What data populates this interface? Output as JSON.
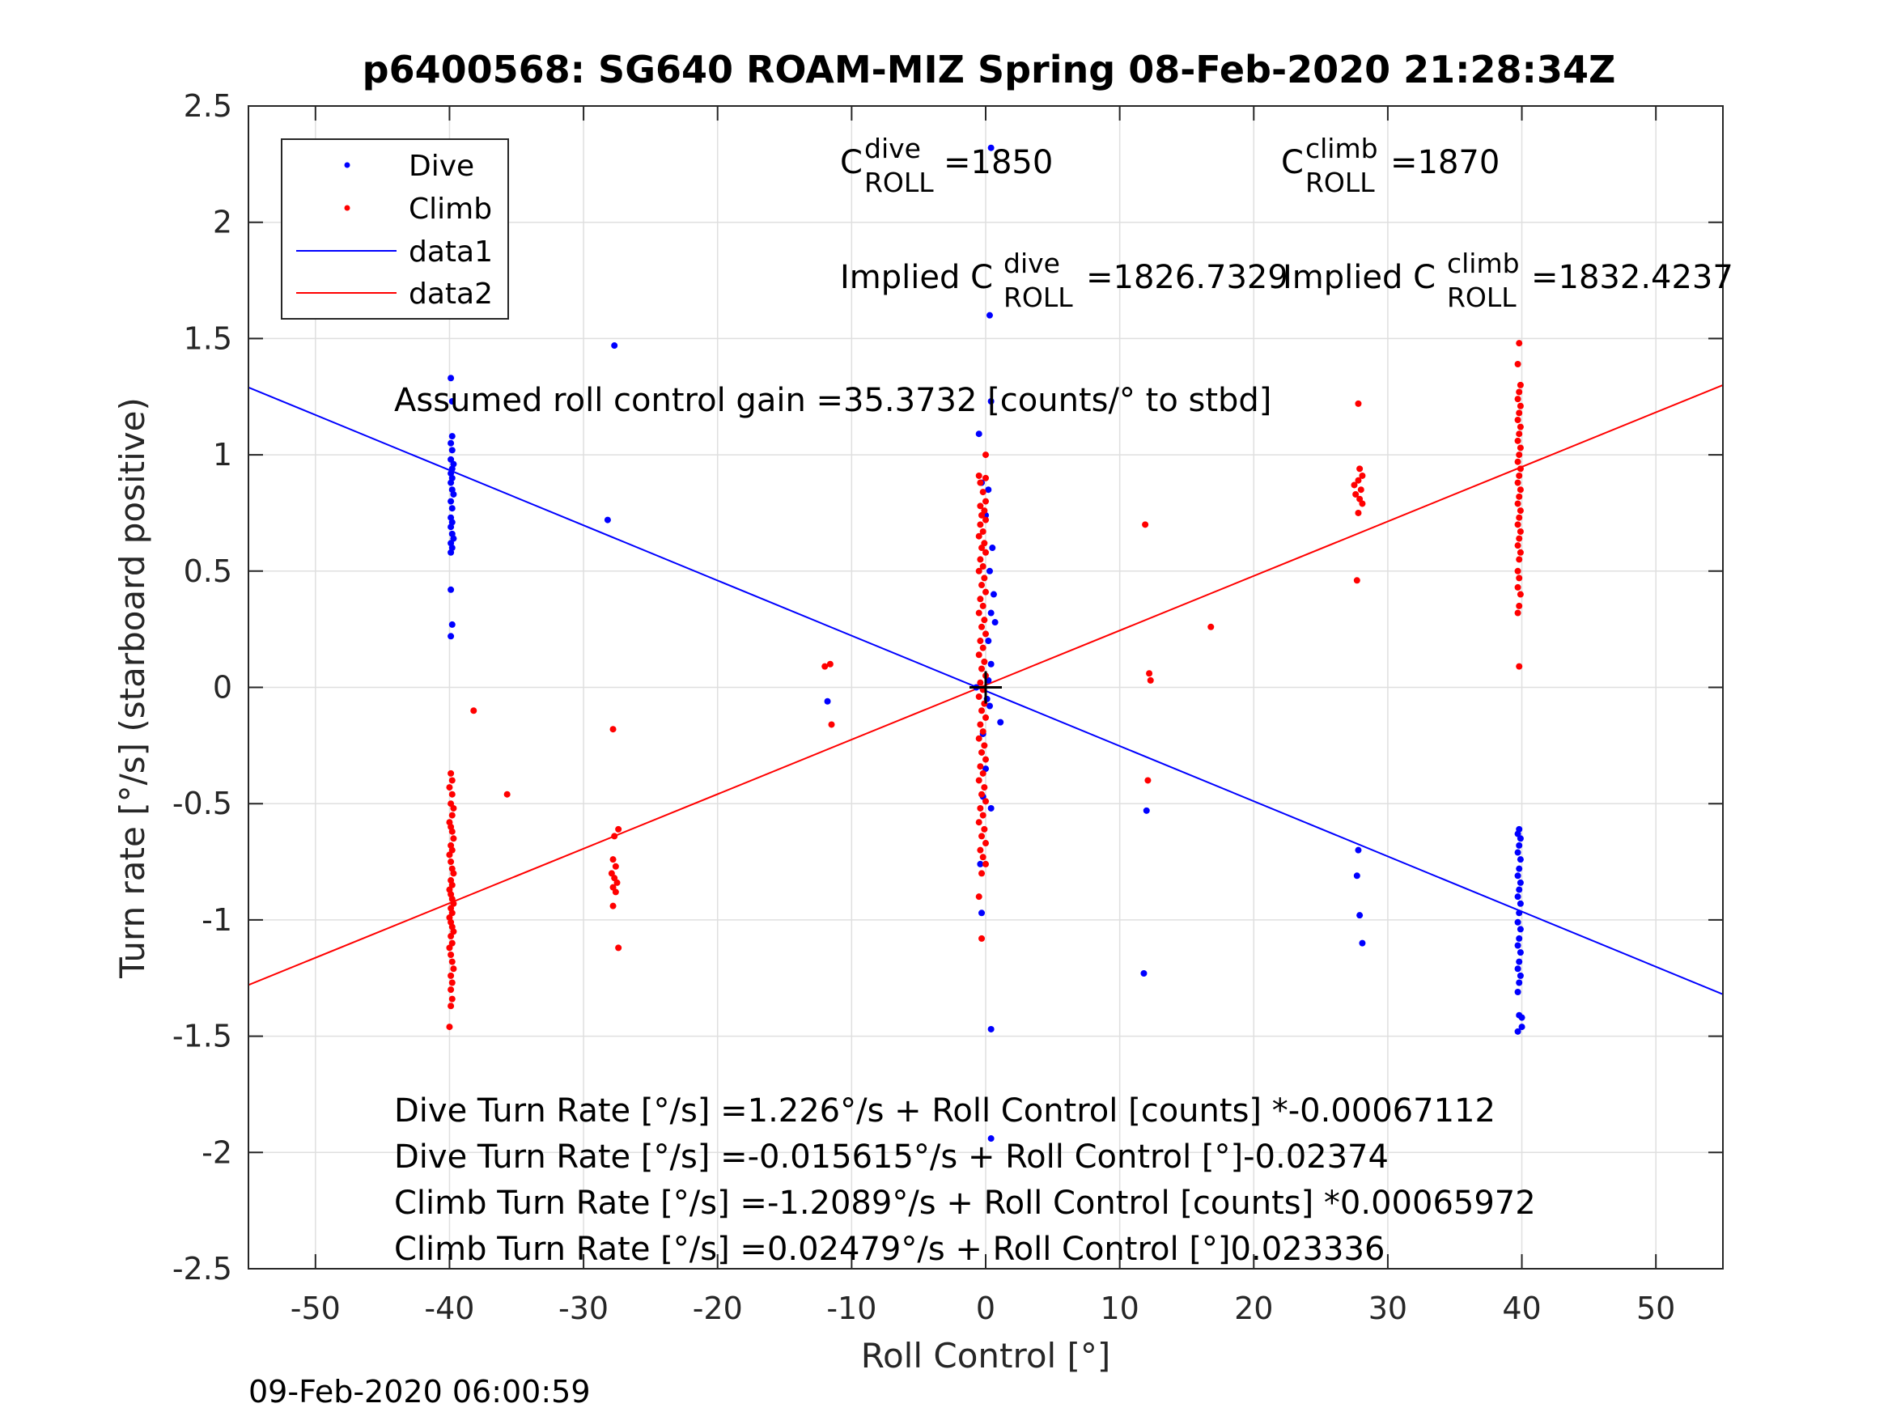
{
  "chart_data": {
    "type": "scatter",
    "title": "p6400568: SG640 ROAM-MIZ Spring 08-Feb-2020 21:28:34Z",
    "xlabel": "Roll Control [°]",
    "ylabel": "Turn rate [°/s] (starboard positive)",
    "xlim": [
      -55,
      55
    ],
    "ylim": [
      -2.5,
      2.5
    ],
    "xticks": [
      -50,
      -40,
      -30,
      -20,
      -10,
      0,
      10,
      20,
      30,
      40,
      50
    ],
    "yticks": [
      -2.5,
      -2,
      -1.5,
      -1,
      -0.5,
      0,
      0.5,
      1,
      1.5,
      2,
      2.5
    ],
    "xtick_labels": [
      "-50",
      "-40",
      "-30",
      "-20",
      "-10",
      "0",
      "10",
      "20",
      "30",
      "40",
      "50"
    ],
    "ytick_labels": [
      "-2.5",
      "-2",
      "-1.5",
      "-1",
      "-0.5",
      "0",
      "0.5",
      "1",
      "1.5",
      "2",
      "2.5"
    ],
    "grid": true,
    "legend_position": "top-left",
    "legend": [
      {
        "name": "Dive",
        "type": "points",
        "color": "#0000ff"
      },
      {
        "name": "Climb",
        "type": "points",
        "color": "#ff0000"
      },
      {
        "name": "data1",
        "type": "line",
        "color": "#0000ff"
      },
      {
        "name": "data2",
        "type": "line",
        "color": "#ff0000"
      }
    ],
    "series": [
      {
        "name": "Dive",
        "color": "#0000ff",
        "points": [
          [
            -39.8,
            1.63
          ],
          [
            -39.9,
            1.33
          ],
          [
            -39.8,
            1.23
          ],
          [
            -39.8,
            1.08
          ],
          [
            -39.9,
            1.05
          ],
          [
            -39.8,
            1.02
          ],
          [
            -39.9,
            0.98
          ],
          [
            -39.7,
            0.96
          ],
          [
            -39.8,
            0.94
          ],
          [
            -39.9,
            0.92
          ],
          [
            -39.8,
            0.9
          ],
          [
            -39.9,
            0.88
          ],
          [
            -39.8,
            0.85
          ],
          [
            -39.7,
            0.83
          ],
          [
            -39.9,
            0.8
          ],
          [
            -39.8,
            0.77
          ],
          [
            -39.9,
            0.73
          ],
          [
            -39.8,
            0.71
          ],
          [
            -39.9,
            0.69
          ],
          [
            -39.8,
            0.66
          ],
          [
            -39.7,
            0.64
          ],
          [
            -39.9,
            0.62
          ],
          [
            -39.8,
            0.6
          ],
          [
            -39.9,
            0.58
          ],
          [
            -39.9,
            0.42
          ],
          [
            -39.8,
            0.27
          ],
          [
            -39.9,
            0.22
          ],
          [
            -27.7,
            1.47
          ],
          [
            -28.2,
            0.72
          ],
          [
            0.4,
            2.32
          ],
          [
            0.3,
            1.6
          ],
          [
            0.4,
            1.23
          ],
          [
            -0.5,
            1.09
          ],
          [
            -0.3,
            0.88
          ],
          [
            0.2,
            0.85
          ],
          [
            0.0,
            0.74
          ],
          [
            0.5,
            0.6
          ],
          [
            0.3,
            0.5
          ],
          [
            0.6,
            0.4
          ],
          [
            0.4,
            0.32
          ],
          [
            0.7,
            0.28
          ],
          [
            0.2,
            0.2
          ],
          [
            0.4,
            0.1
          ],
          [
            0.2,
            0.03
          ],
          [
            -0.7,
            0.0
          ],
          [
            0.1,
            -0.05
          ],
          [
            0.3,
            -0.08
          ],
          [
            -0.2,
            -0.2
          ],
          [
            1.1,
            -0.15
          ],
          [
            0.0,
            -0.35
          ],
          [
            -0.2,
            -0.47
          ],
          [
            0.4,
            -0.52
          ],
          [
            -0.4,
            -0.76
          ],
          [
            -0.3,
            -0.97
          ],
          [
            0.4,
            -1.47
          ],
          [
            0.4,
            -1.94
          ],
          [
            -11.8,
            -0.06
          ],
          [
            12.0,
            -0.53
          ],
          [
            11.8,
            -1.23
          ],
          [
            27.8,
            -0.7
          ],
          [
            27.7,
            -0.81
          ],
          [
            27.9,
            -0.98
          ],
          [
            28.1,
            -1.1
          ],
          [
            39.8,
            -0.61
          ],
          [
            39.7,
            -0.63
          ],
          [
            39.9,
            -0.65
          ],
          [
            39.8,
            -0.68
          ],
          [
            39.7,
            -0.71
          ],
          [
            39.9,
            -0.74
          ],
          [
            39.8,
            -0.78
          ],
          [
            39.7,
            -0.81
          ],
          [
            39.9,
            -0.84
          ],
          [
            39.8,
            -0.87
          ],
          [
            39.7,
            -0.9
          ],
          [
            39.9,
            -0.93
          ],
          [
            39.8,
            -0.97
          ],
          [
            39.7,
            -1.01
          ],
          [
            39.9,
            -1.04
          ],
          [
            39.8,
            -1.08
          ],
          [
            39.7,
            -1.11
          ],
          [
            39.9,
            -1.14
          ],
          [
            39.8,
            -1.18
          ],
          [
            39.7,
            -1.21
          ],
          [
            39.9,
            -1.24
          ],
          [
            39.8,
            -1.27
          ],
          [
            39.7,
            -1.31
          ],
          [
            39.8,
            -1.41
          ],
          [
            40.0,
            -1.42
          ],
          [
            40.0,
            -1.46
          ],
          [
            39.7,
            -1.48
          ]
        ]
      },
      {
        "name": "Climb",
        "color": "#ff0000",
        "points": [
          [
            -39.9,
            -0.37
          ],
          [
            -39.8,
            -0.4
          ],
          [
            -40.0,
            -0.43
          ],
          [
            -39.8,
            -0.46
          ],
          [
            -39.9,
            -0.5
          ],
          [
            -39.7,
            -0.52
          ],
          [
            -39.8,
            -0.55
          ],
          [
            -40.0,
            -0.58
          ],
          [
            -39.9,
            -0.6
          ],
          [
            -39.8,
            -0.62
          ],
          [
            -39.7,
            -0.65
          ],
          [
            -39.9,
            -0.68
          ],
          [
            -39.8,
            -0.7
          ],
          [
            -40.0,
            -0.72
          ],
          [
            -39.9,
            -0.75
          ],
          [
            -39.8,
            -0.78
          ],
          [
            -39.7,
            -0.8
          ],
          [
            -39.9,
            -0.83
          ],
          [
            -39.8,
            -0.85
          ],
          [
            -40.0,
            -0.87
          ],
          [
            -39.9,
            -0.89
          ],
          [
            -39.8,
            -0.91
          ],
          [
            -39.7,
            -0.93
          ],
          [
            -39.9,
            -0.95
          ],
          [
            -39.8,
            -0.97
          ],
          [
            -40.0,
            -0.99
          ],
          [
            -39.9,
            -1.01
          ],
          [
            -39.8,
            -1.03
          ],
          [
            -39.7,
            -1.05
          ],
          [
            -39.9,
            -1.07
          ],
          [
            -39.8,
            -1.1
          ],
          [
            -40.0,
            -1.12
          ],
          [
            -39.9,
            -1.15
          ],
          [
            -39.8,
            -1.18
          ],
          [
            -39.7,
            -1.21
          ],
          [
            -39.9,
            -1.24
          ],
          [
            -39.8,
            -1.27
          ],
          [
            -39.9,
            -1.3
          ],
          [
            -39.8,
            -1.34
          ],
          [
            -39.9,
            -1.37
          ],
          [
            -40.0,
            -1.46
          ],
          [
            -38.2,
            -0.1
          ],
          [
            -35.7,
            -0.46
          ],
          [
            -27.8,
            -0.18
          ],
          [
            -27.4,
            -0.61
          ],
          [
            -27.7,
            -0.64
          ],
          [
            -27.8,
            -0.74
          ],
          [
            -27.6,
            -0.77
          ],
          [
            -27.9,
            -0.8
          ],
          [
            -27.7,
            -0.82
          ],
          [
            -27.5,
            -0.84
          ],
          [
            -27.8,
            -0.86
          ],
          [
            -27.6,
            -0.88
          ],
          [
            -27.8,
            -0.94
          ],
          [
            -27.4,
            -1.12
          ],
          [
            -12.0,
            0.09
          ],
          [
            -11.6,
            0.1
          ],
          [
            -11.5,
            -0.16
          ],
          [
            0.0,
            1.0
          ],
          [
            -0.5,
            0.91
          ],
          [
            0.0,
            0.9
          ],
          [
            -0.4,
            0.88
          ],
          [
            -0.2,
            0.84
          ],
          [
            0.0,
            0.8
          ],
          [
            -0.4,
            0.78
          ],
          [
            -0.1,
            0.76
          ],
          [
            -0.3,
            0.74
          ],
          [
            0.0,
            0.72
          ],
          [
            -0.4,
            0.7
          ],
          [
            -0.2,
            0.67
          ],
          [
            -0.5,
            0.65
          ],
          [
            -0.1,
            0.62
          ],
          [
            -0.3,
            0.6
          ],
          [
            0.0,
            0.58
          ],
          [
            -0.4,
            0.55
          ],
          [
            -0.2,
            0.52
          ],
          [
            -0.5,
            0.5
          ],
          [
            -0.1,
            0.47
          ],
          [
            -0.3,
            0.44
          ],
          [
            0.0,
            0.41
          ],
          [
            -0.4,
            0.38
          ],
          [
            -0.2,
            0.35
          ],
          [
            -0.5,
            0.32
          ],
          [
            -0.1,
            0.29
          ],
          [
            -0.3,
            0.26
          ],
          [
            0.0,
            0.23
          ],
          [
            -0.4,
            0.2
          ],
          [
            -0.2,
            0.17
          ],
          [
            -0.5,
            0.14
          ],
          [
            -0.1,
            0.11
          ],
          [
            -0.3,
            0.08
          ],
          [
            0.0,
            0.05
          ],
          [
            -0.4,
            0.02
          ],
          [
            -0.2,
            -0.01
          ],
          [
            -0.5,
            -0.04
          ],
          [
            -0.1,
            -0.07
          ],
          [
            -0.3,
            -0.1
          ],
          [
            0.0,
            -0.13
          ],
          [
            -0.4,
            -0.16
          ],
          [
            -0.2,
            -0.19
          ],
          [
            -0.5,
            -0.22
          ],
          [
            -0.1,
            -0.25
          ],
          [
            -0.3,
            -0.28
          ],
          [
            0.0,
            -0.31
          ],
          [
            -0.4,
            -0.34
          ],
          [
            -0.2,
            -0.37
          ],
          [
            -0.5,
            -0.4
          ],
          [
            -0.1,
            -0.43
          ],
          [
            -0.3,
            -0.46
          ],
          [
            0.0,
            -0.49
          ],
          [
            -0.4,
            -0.52
          ],
          [
            -0.2,
            -0.55
          ],
          [
            -0.5,
            -0.58
          ],
          [
            -0.1,
            -0.61
          ],
          [
            -0.3,
            -0.64
          ],
          [
            0.0,
            -0.67
          ],
          [
            -0.4,
            -0.7
          ],
          [
            -0.2,
            -0.73
          ],
          [
            0.0,
            -0.76
          ],
          [
            -0.3,
            -0.8
          ],
          [
            -0.5,
            -0.9
          ],
          [
            -0.3,
            -1.08
          ],
          [
            11.9,
            0.7
          ],
          [
            12.2,
            0.06
          ],
          [
            12.3,
            0.03
          ],
          [
            12.1,
            -0.4
          ],
          [
            16.8,
            0.26
          ],
          [
            27.8,
            1.22
          ],
          [
            27.9,
            0.94
          ],
          [
            28.1,
            0.91
          ],
          [
            27.8,
            0.89
          ],
          [
            27.5,
            0.87
          ],
          [
            28.0,
            0.85
          ],
          [
            27.6,
            0.83
          ],
          [
            27.9,
            0.81
          ],
          [
            28.1,
            0.79
          ],
          [
            27.8,
            0.75
          ],
          [
            27.7,
            0.46
          ],
          [
            39.8,
            1.48
          ],
          [
            39.7,
            1.39
          ],
          [
            39.9,
            1.3
          ],
          [
            39.8,
            1.27
          ],
          [
            39.7,
            1.24
          ],
          [
            39.9,
            1.21
          ],
          [
            39.8,
            1.18
          ],
          [
            39.7,
            1.15
          ],
          [
            39.9,
            1.12
          ],
          [
            39.8,
            1.09
          ],
          [
            39.7,
            1.06
          ],
          [
            39.9,
            1.03
          ],
          [
            39.8,
            1.0
          ],
          [
            39.7,
            0.97
          ],
          [
            39.9,
            0.94
          ],
          [
            39.8,
            0.91
          ],
          [
            39.7,
            0.88
          ],
          [
            39.9,
            0.85
          ],
          [
            39.8,
            0.82
          ],
          [
            39.7,
            0.79
          ],
          [
            39.9,
            0.76
          ],
          [
            39.8,
            0.73
          ],
          [
            39.7,
            0.7
          ],
          [
            39.9,
            0.67
          ],
          [
            39.8,
            0.64
          ],
          [
            39.7,
            0.61
          ],
          [
            39.9,
            0.58
          ],
          [
            39.8,
            0.55
          ],
          [
            39.7,
            0.5
          ],
          [
            39.8,
            0.47
          ],
          [
            39.7,
            0.43
          ],
          [
            39.9,
            0.4
          ],
          [
            39.8,
            0.35
          ],
          [
            39.7,
            0.32
          ],
          [
            39.8,
            0.09
          ]
        ]
      },
      {
        "name": "data1",
        "type": "line",
        "color": "#0000ff",
        "x": [
          -55,
          55
        ],
        "y": [
          1.29,
          -1.32
        ]
      },
      {
        "name": "data2",
        "type": "line",
        "color": "#ff0000",
        "x": [
          -55,
          55
        ],
        "y": [
          -1.28,
          1.3
        ]
      }
    ],
    "marker": {
      "x": 0,
      "y": 0,
      "symbol": "+"
    },
    "annotations": {
      "c_dive": {
        "base": "C",
        "sup": "dive",
        "sub": "ROLL",
        "value": "=1850"
      },
      "c_climb": {
        "base": "C",
        "sup": "climb",
        "sub": "ROLL",
        "value": "=1870"
      },
      "implied_dive": {
        "prefix": "Implied C",
        "sup": "dive",
        "sub": "ROLL",
        "value": "=1826.7329"
      },
      "implied_climb": {
        "prefix": "Implied C",
        "sup": "climb",
        "sub": "ROLL",
        "value": "=1832.4237"
      },
      "gain": "Assumed roll control gain =35.3732 [counts/° to stbd]",
      "equations": [
        "Dive Turn Rate [°/s] =1.226°/s + Roll Control [counts] *-0.00067112",
        "Dive Turn Rate [°/s] =-0.015615°/s + Roll Control [°]-0.02374",
        "Climb Turn Rate [°/s] =-1.2089°/s + Roll Control [counts] *0.00065972",
        "Climb Turn Rate [°/s] =0.02479°/s + Roll Control [°]0.023336"
      ]
    },
    "timestamp": "09-Feb-2020 06:00:59"
  }
}
